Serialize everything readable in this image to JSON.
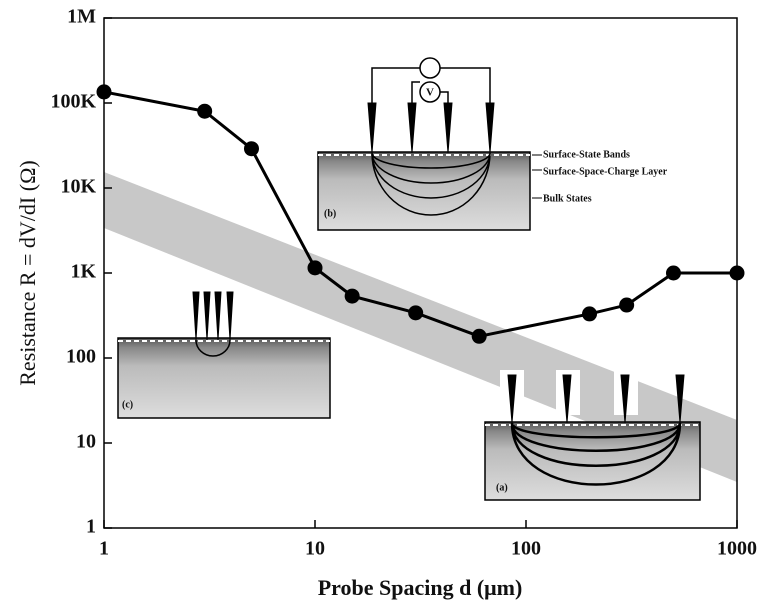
{
  "chart_data": {
    "type": "line",
    "xlabel": "Probe Spacing d (μm)",
    "ylabel": "Resistance R = dV/dI (Ω)",
    "x": [
      1,
      3,
      5,
      10,
      15,
      30,
      60,
      200,
      300,
      500,
      1000
    ],
    "series": [
      {
        "color": "#000000",
        "values": [
          135000,
          80000,
          29000,
          1150,
          535,
          340,
          180,
          330,
          420,
          1000,
          1000
        ]
      }
    ],
    "xlim": [
      1,
      1000
    ],
    "ylim": [
      1,
      1000000
    ],
    "log_x": true,
    "log_y": true,
    "xticks": [
      1,
      10,
      100,
      1000
    ],
    "yticks": [
      1,
      10,
      100,
      {
        "value": 1000,
        "label": "1K"
      },
      {
        "value": 10000,
        "label": "10K"
      },
      {
        "value": 100000,
        "label": "100K"
      },
      {
        "value": 1000000,
        "label": "1M"
      }
    ],
    "annotations": [
      "Surface-State Bands",
      "Surface-Space-Charge Layer",
      "Bulk States",
      "(a)",
      "(b)",
      "(c)"
    ]
  }
}
